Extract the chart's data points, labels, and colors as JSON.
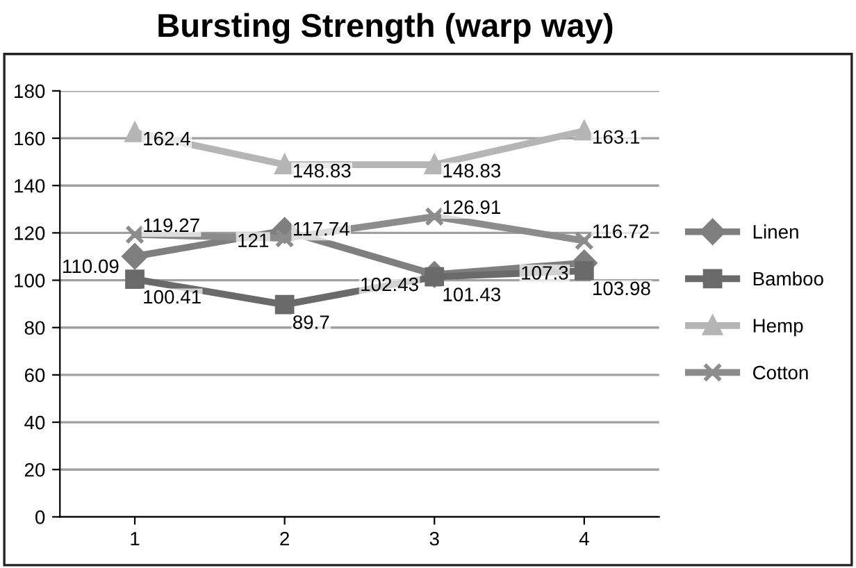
{
  "chart_data": {
    "type": "line",
    "title": "Bursting Strength (warp way)",
    "categories": [
      "1",
      "2",
      "3",
      "4"
    ],
    "series": [
      {
        "name": "Linen",
        "color": "#7f7f7f",
        "marker": "diamond",
        "values": [
          110.09,
          121,
          102.43,
          107.3
        ]
      },
      {
        "name": "Bamboo",
        "color": "#6a6a6a",
        "marker": "square",
        "values": [
          100.41,
          89.7,
          101.43,
          103.98
        ]
      },
      {
        "name": "Hemp",
        "color": "#b5b5b5",
        "marker": "triangle",
        "values": [
          162.4,
          148.83,
          148.83,
          163.1
        ]
      },
      {
        "name": "Cotton",
        "color": "#8c8c8c",
        "marker": "cross",
        "values": [
          119.27,
          117.74,
          126.91,
          116.72
        ]
      }
    ],
    "ylim": [
      0,
      180
    ],
    "yticks": [
      0,
      20,
      40,
      60,
      80,
      100,
      120,
      140,
      160,
      180
    ],
    "grid": "y",
    "legend": "right",
    "data_labels": true
  }
}
